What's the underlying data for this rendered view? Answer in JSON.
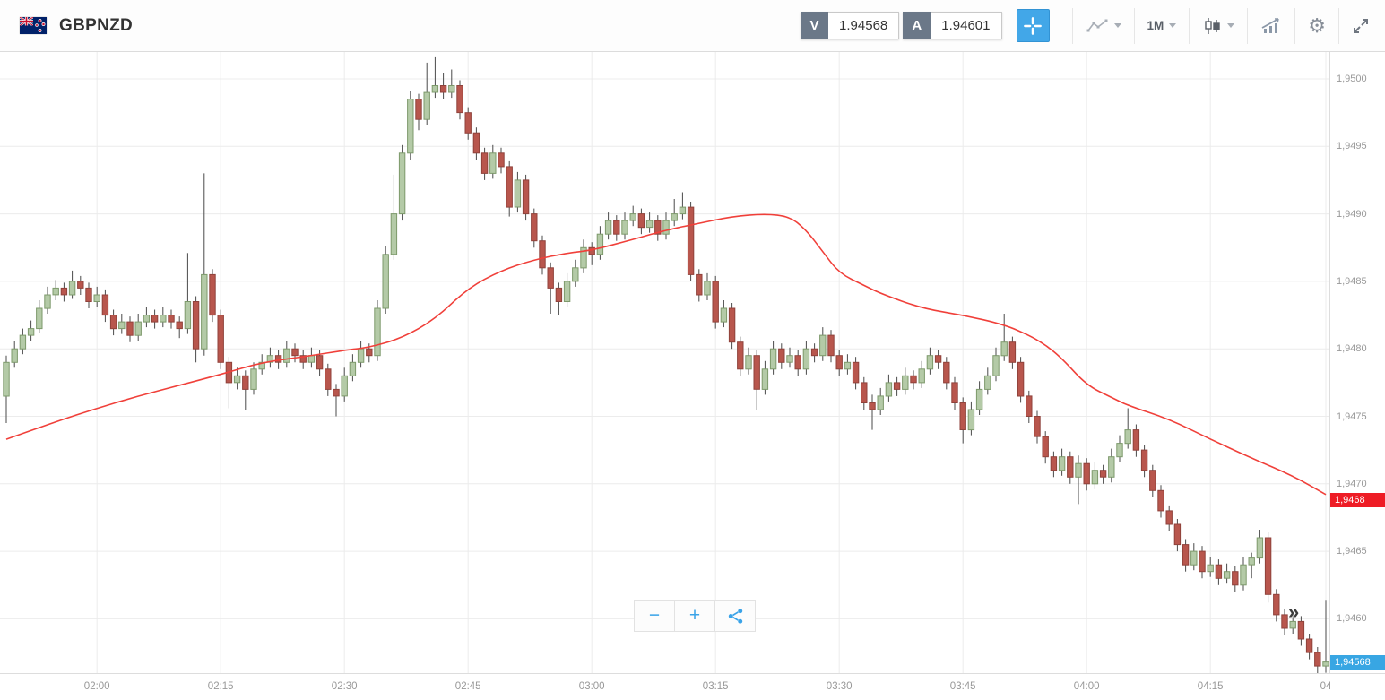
{
  "header": {
    "symbol": "GBPNZD",
    "flag": "new-zealand-flag",
    "sell": {
      "label": "V",
      "value": "1.94568"
    },
    "buy": {
      "label": "A",
      "value": "1.94601"
    },
    "timeframe": "1M"
  },
  "glyphs": {
    "settings": "⚙",
    "zoom_out": "−",
    "zoom_in": "+",
    "jump_to_latest": "»"
  },
  "colors": {
    "accent_blue": "#42a7e8",
    "ma_red": "#f0403a",
    "badge_red": "#ee1c25",
    "badge_blue": "#38a6e3"
  },
  "chart_data": {
    "type": "candlestick",
    "symbol": "GBPNZD",
    "timeframe": "1M",
    "price_base": 1.94,
    "pip_unit": 1e-05,
    "note": "candles are [open,high,low,close] in pips above 1.94 (price = 1.94 + v/100000); candle index = minutes after 01:49",
    "y_axis": {
      "tick_pips": [
        1000,
        950,
        900,
        850,
        800,
        750,
        700,
        650,
        600
      ],
      "tick_labels": [
        "1,9500",
        "1,9495",
        "1,9490",
        "1,9485",
        "1,9480",
        "1,9475",
        "1,9470",
        "1,9465",
        "1,9460"
      ]
    },
    "x_axis": {
      "ticks": [
        {
          "min": 11,
          "label": "02:00"
        },
        {
          "min": 26,
          "label": "02:15"
        },
        {
          "min": 41,
          "label": "02:30"
        },
        {
          "min": 56,
          "label": "02:45"
        },
        {
          "min": 71,
          "label": "03:00"
        },
        {
          "min": 86,
          "label": "03:15"
        },
        {
          "min": 101,
          "label": "03:30"
        },
        {
          "min": 116,
          "label": "03:45"
        },
        {
          "min": 131,
          "label": "04:00"
        },
        {
          "min": 146,
          "label": "04:15"
        },
        {
          "min": 160,
          "label": "04"
        }
      ]
    },
    "candle_colors": {
      "up_fill": "#b4caa7",
      "up_stroke": "#7d996b",
      "down_fill": "#b8564d",
      "down_stroke": "#8f423b",
      "wick": "#4a4a4a"
    },
    "candles": [
      [
        765,
        795,
        745,
        790
      ],
      [
        790,
        806,
        786,
        800
      ],
      [
        800,
        815,
        796,
        810
      ],
      [
        810,
        821,
        806,
        815
      ],
      [
        815,
        836,
        812,
        830
      ],
      [
        830,
        846,
        826,
        840
      ],
      [
        840,
        851,
        836,
        845
      ],
      [
        845,
        849,
        835,
        840
      ],
      [
        840,
        858,
        837,
        850
      ],
      [
        850,
        854,
        840,
        845
      ],
      [
        845,
        849,
        830,
        835
      ],
      [
        835,
        846,
        831,
        840
      ],
      [
        840,
        844,
        820,
        825
      ],
      [
        825,
        829,
        810,
        815
      ],
      [
        815,
        826,
        811,
        820
      ],
      [
        820,
        824,
        805,
        810
      ],
      [
        810,
        826,
        806,
        820
      ],
      [
        820,
        831,
        816,
        825
      ],
      [
        825,
        829,
        815,
        820
      ],
      [
        820,
        831,
        816,
        825
      ],
      [
        825,
        829,
        815,
        820
      ],
      [
        820,
        824,
        808,
        815
      ],
      [
        815,
        871,
        811,
        835
      ],
      [
        835,
        839,
        790,
        800
      ],
      [
        800,
        930,
        795,
        855
      ],
      [
        855,
        859,
        820,
        825
      ],
      [
        825,
        829,
        785,
        790
      ],
      [
        790,
        794,
        756,
        775
      ],
      [
        775,
        786,
        770,
        780
      ],
      [
        780,
        784,
        755,
        770
      ],
      [
        770,
        790,
        766,
        785
      ],
      [
        785,
        796,
        781,
        790
      ],
      [
        790,
        801,
        786,
        795
      ],
      [
        795,
        799,
        785,
        790
      ],
      [
        790,
        806,
        786,
        800
      ],
      [
        800,
        804,
        790,
        795
      ],
      [
        795,
        799,
        785,
        790
      ],
      [
        790,
        801,
        786,
        795
      ],
      [
        795,
        799,
        780,
        785
      ],
      [
        785,
        789,
        765,
        770
      ],
      [
        770,
        774,
        750,
        765
      ],
      [
        765,
        786,
        761,
        780
      ],
      [
        780,
        796,
        776,
        790
      ],
      [
        790,
        806,
        786,
        800
      ],
      [
        800,
        804,
        790,
        795
      ],
      [
        795,
        836,
        791,
        830
      ],
      [
        830,
        876,
        826,
        870
      ],
      [
        870,
        929,
        866,
        900
      ],
      [
        900,
        951,
        895,
        945
      ],
      [
        945,
        991,
        940,
        985
      ],
      [
        985,
        989,
        962,
        970
      ],
      [
        970,
        1012,
        966,
        990
      ],
      [
        990,
        1016,
        986,
        995
      ],
      [
        995,
        1004,
        985,
        990
      ],
      [
        990,
        1007,
        986,
        995
      ],
      [
        995,
        999,
        970,
        975
      ],
      [
        975,
        979,
        955,
        960
      ],
      [
        960,
        964,
        940,
        945
      ],
      [
        945,
        949,
        925,
        930
      ],
      [
        930,
        951,
        926,
        945
      ],
      [
        945,
        949,
        930,
        935
      ],
      [
        935,
        939,
        898,
        905
      ],
      [
        905,
        931,
        901,
        925
      ],
      [
        925,
        929,
        895,
        900
      ],
      [
        900,
        904,
        875,
        880
      ],
      [
        880,
        884,
        855,
        860
      ],
      [
        860,
        864,
        826,
        845
      ],
      [
        845,
        849,
        825,
        835
      ],
      [
        835,
        856,
        831,
        850
      ],
      [
        850,
        866,
        846,
        860
      ],
      [
        860,
        881,
        856,
        875
      ],
      [
        875,
        879,
        862,
        870
      ],
      [
        870,
        891,
        866,
        885
      ],
      [
        885,
        901,
        881,
        895
      ],
      [
        895,
        899,
        880,
        885
      ],
      [
        885,
        901,
        881,
        895
      ],
      [
        895,
        906,
        891,
        900
      ],
      [
        900,
        904,
        885,
        890
      ],
      [
        890,
        901,
        886,
        895
      ],
      [
        895,
        899,
        880,
        885
      ],
      [
        885,
        901,
        881,
        895
      ],
      [
        895,
        911,
        891,
        900
      ],
      [
        900,
        916,
        896,
        905
      ],
      [
        905,
        909,
        850,
        855
      ],
      [
        855,
        859,
        835,
        840
      ],
      [
        840,
        856,
        836,
        850
      ],
      [
        850,
        854,
        815,
        820
      ],
      [
        820,
        836,
        816,
        830
      ],
      [
        830,
        834,
        800,
        805
      ],
      [
        805,
        809,
        780,
        785
      ],
      [
        785,
        801,
        781,
        795
      ],
      [
        795,
        799,
        755,
        770
      ],
      [
        770,
        791,
        766,
        785
      ],
      [
        785,
        806,
        781,
        800
      ],
      [
        800,
        804,
        785,
        790
      ],
      [
        790,
        801,
        786,
        795
      ],
      [
        795,
        799,
        780,
        785
      ],
      [
        785,
        806,
        781,
        800
      ],
      [
        800,
        804,
        790,
        795
      ],
      [
        795,
        816,
        791,
        810
      ],
      [
        810,
        814,
        790,
        795
      ],
      [
        795,
        799,
        780,
        785
      ],
      [
        785,
        796,
        781,
        790
      ],
      [
        790,
        794,
        770,
        775
      ],
      [
        775,
        779,
        755,
        760
      ],
      [
        760,
        766,
        740,
        755
      ],
      [
        755,
        771,
        751,
        765
      ],
      [
        765,
        781,
        761,
        775
      ],
      [
        775,
        779,
        765,
        770
      ],
      [
        770,
        786,
        766,
        780
      ],
      [
        780,
        784,
        770,
        775
      ],
      [
        775,
        791,
        771,
        785
      ],
      [
        785,
        801,
        781,
        795
      ],
      [
        795,
        799,
        785,
        790
      ],
      [
        790,
        794,
        770,
        775
      ],
      [
        775,
        779,
        755,
        760
      ],
      [
        760,
        764,
        730,
        740
      ],
      [
        740,
        761,
        736,
        755
      ],
      [
        755,
        776,
        751,
        770
      ],
      [
        770,
        786,
        766,
        780
      ],
      [
        780,
        801,
        776,
        795
      ],
      [
        795,
        826,
        791,
        805
      ],
      [
        805,
        809,
        785,
        790
      ],
      [
        790,
        794,
        760,
        765
      ],
      [
        765,
        769,
        745,
        750
      ],
      [
        750,
        754,
        730,
        735
      ],
      [
        735,
        739,
        715,
        720
      ],
      [
        720,
        724,
        705,
        710
      ],
      [
        710,
        726,
        706,
        720
      ],
      [
        720,
        724,
        700,
        705
      ],
      [
        705,
        721,
        685,
        715
      ],
      [
        715,
        719,
        695,
        700
      ],
      [
        700,
        716,
        696,
        710
      ],
      [
        710,
        714,
        700,
        705
      ],
      [
        705,
        726,
        701,
        720
      ],
      [
        720,
        736,
        716,
        730
      ],
      [
        730,
        756,
        726,
        740
      ],
      [
        740,
        744,
        720,
        725
      ],
      [
        725,
        729,
        705,
        710
      ],
      [
        710,
        714,
        690,
        695
      ],
      [
        695,
        699,
        675,
        680
      ],
      [
        680,
        684,
        665,
        670
      ],
      [
        670,
        674,
        650,
        655
      ],
      [
        655,
        659,
        635,
        640
      ],
      [
        640,
        656,
        636,
        650
      ],
      [
        650,
        654,
        630,
        635
      ],
      [
        635,
        646,
        631,
        640
      ],
      [
        640,
        644,
        625,
        630
      ],
      [
        630,
        641,
        626,
        635
      ],
      [
        635,
        639,
        620,
        625
      ],
      [
        625,
        646,
        621,
        640
      ],
      [
        640,
        649,
        630,
        645
      ],
      [
        645,
        666,
        641,
        660
      ],
      [
        660,
        664,
        612,
        618
      ],
      [
        618,
        622,
        598,
        603
      ],
      [
        603,
        607,
        588,
        593
      ],
      [
        593,
        604,
        589,
        598
      ],
      [
        598,
        602,
        580,
        585
      ],
      [
        585,
        589,
        570,
        575
      ],
      [
        575,
        579,
        558,
        565
      ],
      [
        565,
        614,
        560,
        568
      ]
    ],
    "ma_line": {
      "color": "#f0403a",
      "points": [
        [
          0,
          733
        ],
        [
          6,
          746
        ],
        [
          11,
          756
        ],
        [
          16,
          765
        ],
        [
          21,
          773
        ],
        [
          26,
          781
        ],
        [
          31,
          790
        ],
        [
          36,
          794
        ],
        [
          41,
          799
        ],
        [
          44,
          801
        ],
        [
          48,
          808
        ],
        [
          52,
          822
        ],
        [
          56,
          845
        ],
        [
          60,
          858
        ],
        [
          64,
          866
        ],
        [
          68,
          871
        ],
        [
          71,
          873
        ],
        [
          76,
          881
        ],
        [
          80,
          888
        ],
        [
          84,
          893
        ],
        [
          88,
          898
        ],
        [
          92,
          900
        ],
        [
          95,
          898
        ],
        [
          97,
          888
        ],
        [
          99,
          872
        ],
        [
          101,
          856
        ],
        [
          104,
          847
        ],
        [
          106,
          841
        ],
        [
          111,
          830
        ],
        [
          116,
          825
        ],
        [
          121,
          818
        ],
        [
          124,
          810
        ],
        [
          126,
          803
        ],
        [
          128,
          793
        ],
        [
          131,
          773
        ],
        [
          134,
          764
        ],
        [
          136,
          758
        ],
        [
          141,
          748
        ],
        [
          146,
          733
        ],
        [
          151,
          719
        ],
        [
          156,
          706
        ],
        [
          160,
          692
        ]
      ]
    },
    "last_price_badge": {
      "value": "1,94568",
      "pip": 568,
      "color": "#38a6e3"
    },
    "ma_price_badge": {
      "value": "1,9468",
      "pip": 688,
      "color": "#ee1c25"
    }
  },
  "chart_controls": {
    "zoom_out": "−",
    "zoom_in": "+",
    "share": "share-icon",
    "jump_to_latest": "»"
  }
}
